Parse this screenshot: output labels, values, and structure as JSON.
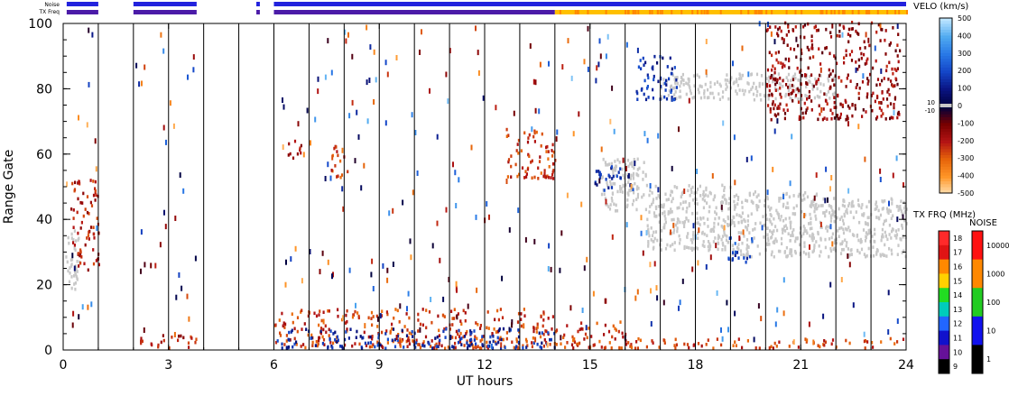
{
  "chart_data": {
    "type": "heatmap",
    "xlabel": "UT hours",
    "ylabel": "Range Gate",
    "xlim": [
      0,
      24
    ],
    "ylim": [
      0,
      100
    ],
    "x_ticks": [
      "0",
      "3",
      "6",
      "9",
      "12",
      "15",
      "18",
      "21",
      "24"
    ],
    "y_ticks": [
      "0",
      "20",
      "40",
      "60",
      "80",
      "100"
    ],
    "scan_boundaries_hours": [
      1,
      2,
      3,
      4,
      5,
      6,
      7,
      8,
      9,
      10,
      11,
      12,
      13,
      14,
      15,
      16,
      17,
      18,
      19,
      20,
      21,
      22,
      23
    ],
    "noise_label": "Noise",
    "txfreq_label": "TX Freq",
    "noise_bar": [
      {
        "start": 0.1,
        "end": 1.0,
        "color": "#2222dd"
      },
      {
        "start": 2.0,
        "end": 3.8,
        "color": "#2222dd"
      },
      {
        "start": 5.5,
        "end": 5.6,
        "color": "#2222dd"
      },
      {
        "start": 6.0,
        "end": 24.0,
        "color": "#2222dd"
      }
    ],
    "txfreq_bar": [
      {
        "start": 0.1,
        "end": 1.0,
        "color": "#4b1ba8"
      },
      {
        "start": 2.0,
        "end": 3.8,
        "color": "#4b1ba8"
      },
      {
        "start": 5.5,
        "end": 5.6,
        "color": "#4b1ba8"
      },
      {
        "start": 6.0,
        "end": 14.0,
        "color": "#4b1ba8"
      },
      {
        "start": 14.0,
        "end": 24.0,
        "color": "#ffc000"
      }
    ],
    "ground_scatter_color": "#c8c8c8",
    "ground_scatter_regions": [
      {
        "x": [
          0.05,
          0.45
        ],
        "y": [
          18,
          36
        ]
      },
      {
        "x": [
          15.3,
          16.6
        ],
        "y": [
          42,
          58
        ]
      },
      {
        "x": [
          16.6,
          19.0
        ],
        "y": [
          30,
          50
        ]
      },
      {
        "x": [
          19.0,
          21.5
        ],
        "y": [
          28,
          48
        ]
      },
      {
        "x": [
          21.5,
          24.0
        ],
        "y": [
          28,
          46
        ]
      },
      {
        "x": [
          17.0,
          22.0
        ],
        "y": [
          76,
          84
        ]
      }
    ],
    "velocity_regions": [
      {
        "x": [
          0.2,
          1.0
        ],
        "y": [
          24,
          52
        ],
        "vel": -200
      },
      {
        "x": [
          2.0,
          3.8
        ],
        "y": [
          0,
          4
        ],
        "vel": -200
      },
      {
        "x": [
          6.0,
          14.0
        ],
        "y": [
          0,
          12
        ],
        "vel": -250
      },
      {
        "x": [
          6.0,
          14.0
        ],
        "y": [
          0,
          6
        ],
        "vel": 150
      },
      {
        "x": [
          14.0,
          16.0
        ],
        "y": [
          0,
          9
        ],
        "vel": -250
      },
      {
        "x": [
          16.0,
          23.9
        ],
        "y": [
          0,
          3
        ],
        "vel": -250
      },
      {
        "x": [
          6.3,
          6.8
        ],
        "y": [
          58,
          64
        ],
        "vel": -150
      },
      {
        "x": [
          7.6,
          8.1
        ],
        "y": [
          52,
          62
        ],
        "vel": -250
      },
      {
        "x": [
          12.6,
          14.0
        ],
        "y": [
          52,
          68
        ],
        "vel": -250
      },
      {
        "x": [
          15.1,
          16.2
        ],
        "y": [
          48,
          56
        ],
        "vel": 150
      },
      {
        "x": [
          18.9,
          19.6
        ],
        "y": [
          26,
          34
        ],
        "vel": 200
      },
      {
        "x": [
          16.3,
          17.5
        ],
        "y": [
          76,
          90
        ],
        "vel": 150
      },
      {
        "x": [
          20.0,
          23.8
        ],
        "y": [
          70,
          100
        ],
        "vel": -150
      }
    ],
    "colorbars": {
      "velocity": {
        "label": "VELO (km/s)",
        "ticks": [
          "500",
          "400",
          "300",
          "200",
          "100",
          "0",
          "-100",
          "-200",
          "-300",
          "-400",
          "-500"
        ],
        "ground_ticks": [
          "10",
          "-10"
        ]
      },
      "txfreq": {
        "label": "TX FRQ (MHz)",
        "ticks": [
          "18",
          "17",
          "16",
          "15",
          "14",
          "13",
          "12",
          "11",
          "10",
          "9"
        ],
        "colors": [
          "#ff2a2a",
          "#e01414",
          "#ff8800",
          "#ffd000",
          "#22dd22",
          "#00ccbb",
          "#2266ff",
          "#1111cc",
          "#661199",
          "#000000"
        ]
      },
      "noise": {
        "label": "NOISE",
        "ticks": [
          "10000",
          "1000",
          "100",
          "10",
          "1"
        ],
        "colors": [
          "#ff1111",
          "#ff8800",
          "#22cc22",
          "#1111ee",
          "#000000"
        ]
      }
    }
  }
}
